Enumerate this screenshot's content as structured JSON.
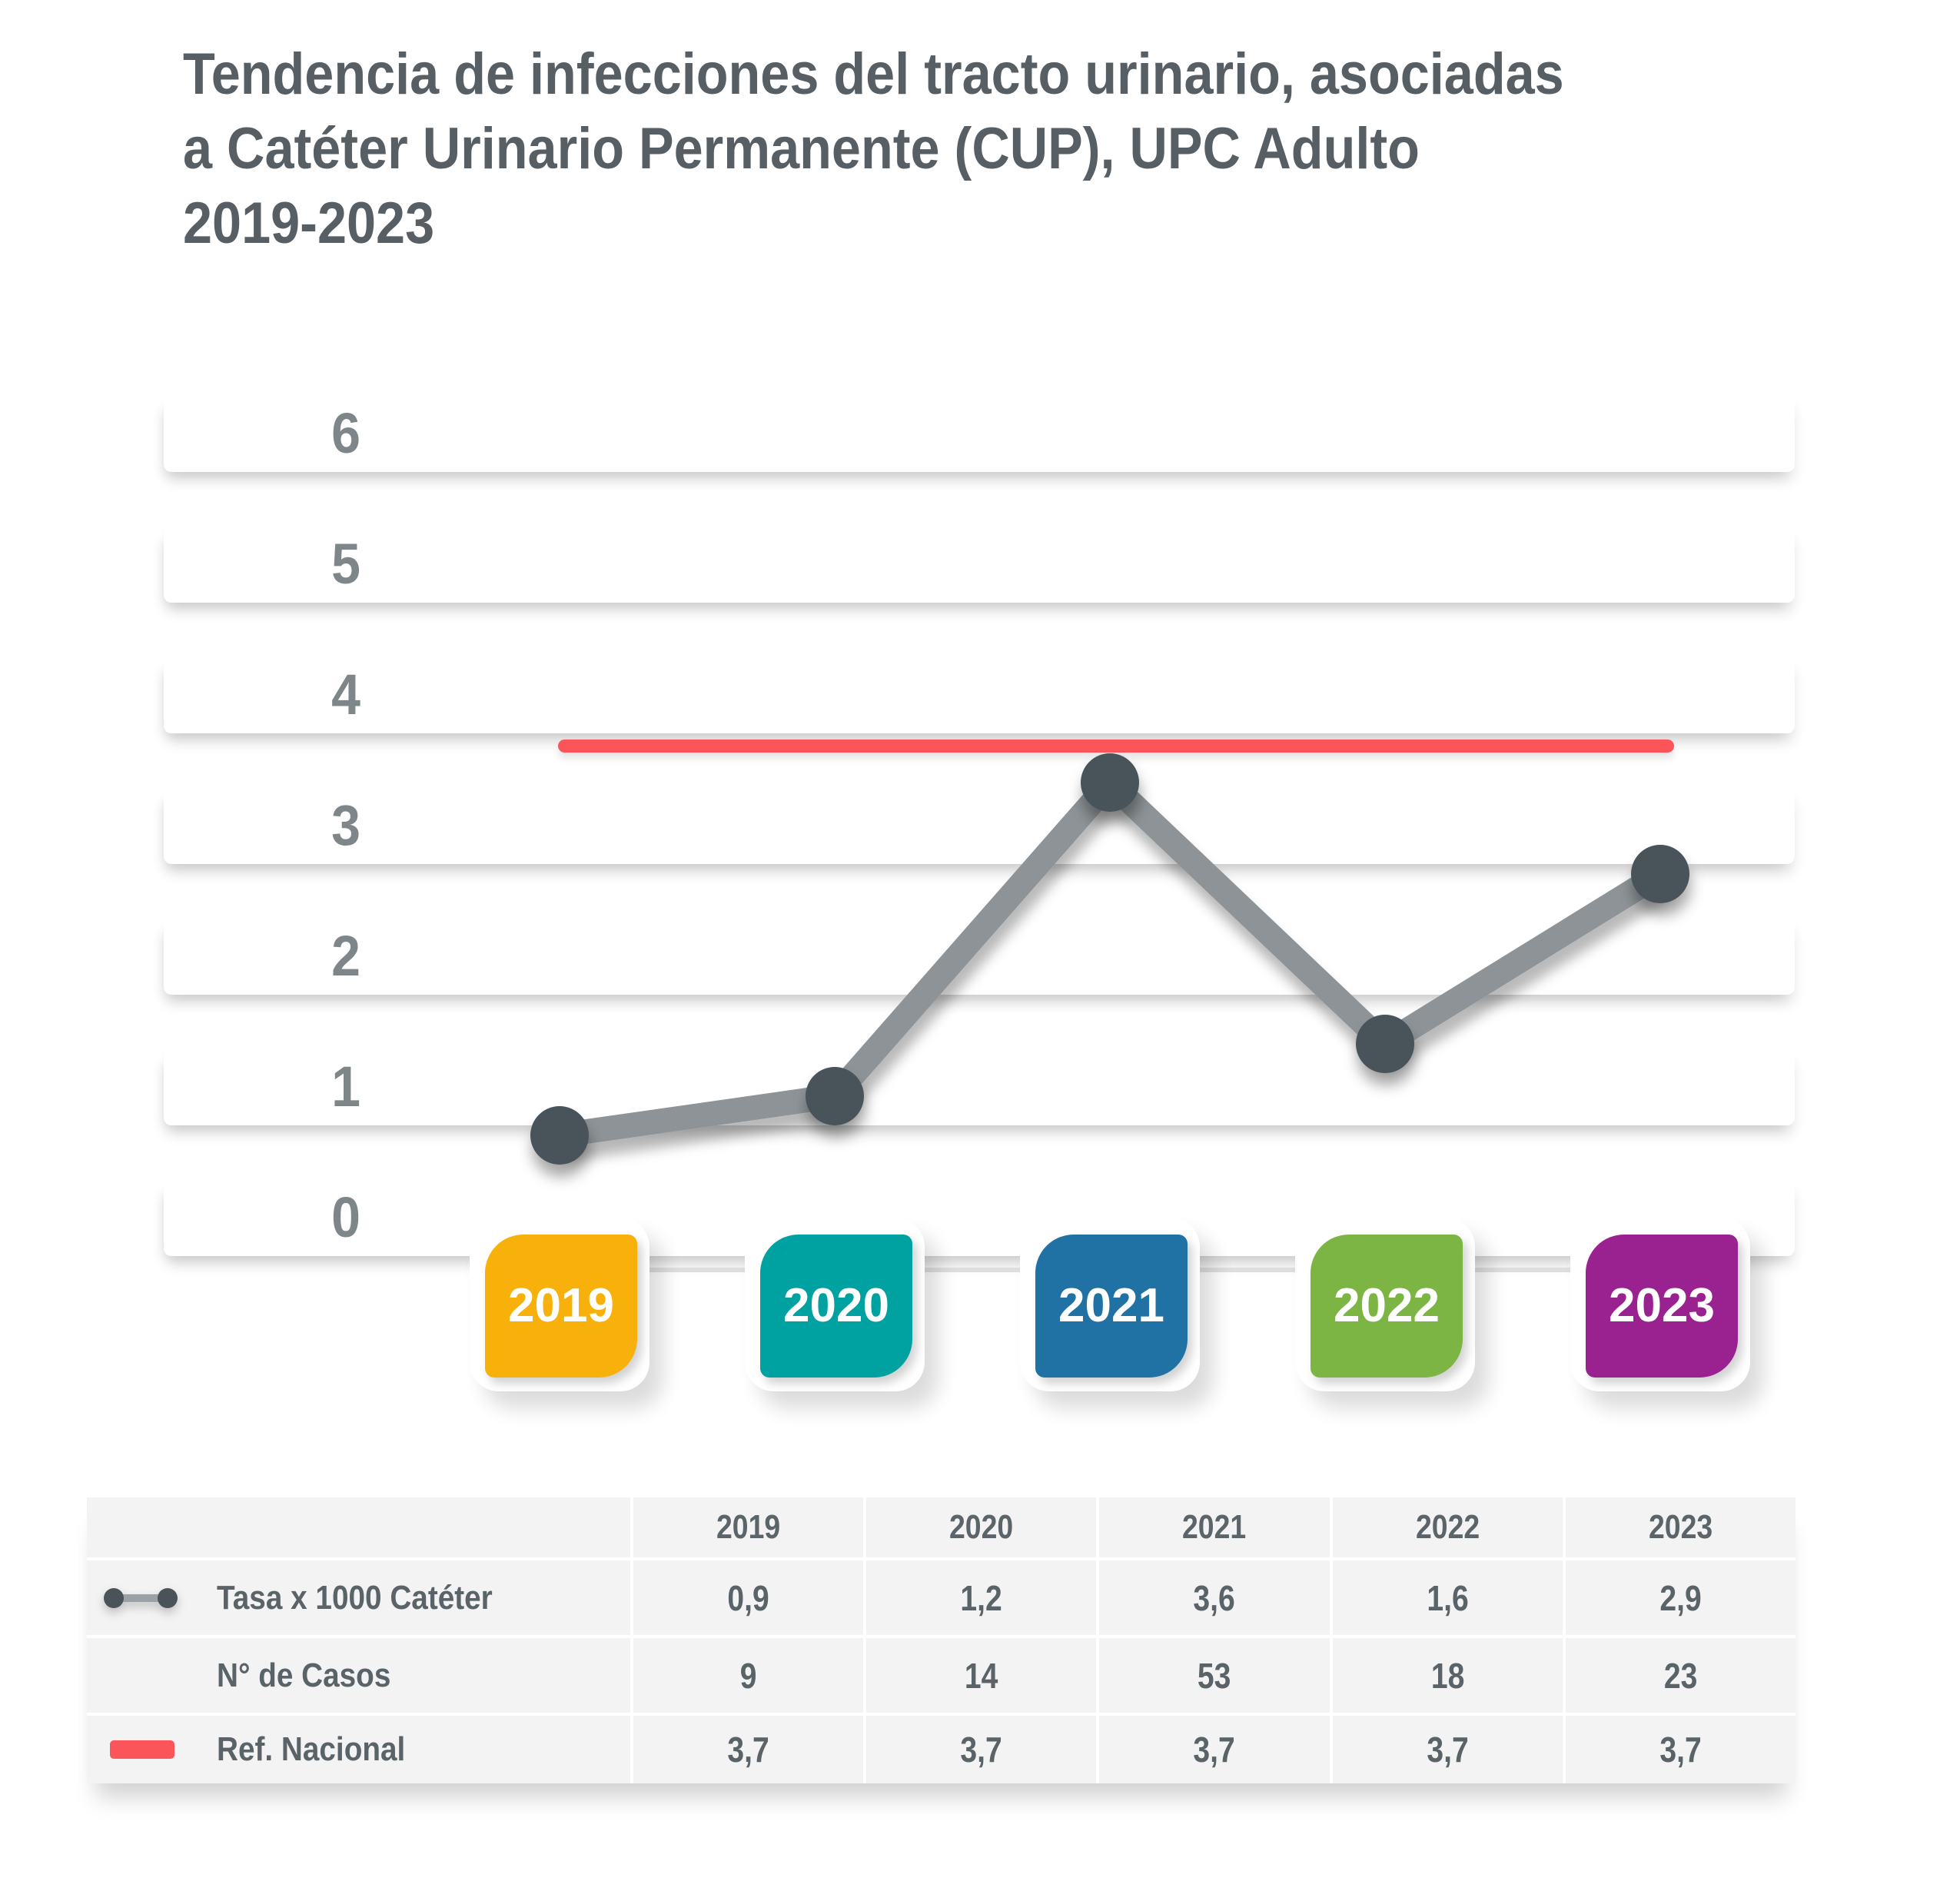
{
  "title": {
    "lines": [
      "Tendencia de infecciones del tracto urinario, asociadas",
      "a Catéter Urinario Permanente (CUP), UPC Adulto",
      "2019-2023"
    ]
  },
  "chart_data": {
    "type": "line",
    "title": "Tendencia de infecciones del tracto urinario, asociadas a Catéter Urinario Permanente (CUP), UPC Adulto 2019-2023",
    "categories": [
      "2019",
      "2020",
      "2021",
      "2022",
      "2023"
    ],
    "series": [
      {
        "name": "Tasa x 1000 Catéter",
        "values": [
          0.9,
          1.2,
          3.6,
          1.6,
          2.9
        ]
      },
      {
        "name": "N° de Casos",
        "values": [
          9,
          14,
          53,
          18,
          23
        ]
      },
      {
        "name": "Ref. Nacional",
        "values": [
          3.7,
          3.7,
          3.7,
          3.7,
          3.7
        ]
      }
    ],
    "xlabel": "",
    "ylabel": "",
    "ylim": [
      0,
      6
    ],
    "yticks": [
      6,
      5,
      4,
      3,
      2,
      1,
      0
    ],
    "grid": "horizontal-bands",
    "legend_position": "table-left",
    "colors": {
      "year_chips": [
        "#F7B10A",
        "#00A2A1",
        "#2071A4",
        "#7CB544",
        "#9A2190"
      ],
      "ref_line": "#FB5459",
      "trend_line": "#8D9396",
      "dot": "#48525A",
      "yaxis_label": "#7F868A",
      "title_text": "#575F64",
      "table_text": "#5A6367",
      "table_cell_bg": "#F3F3F4"
    }
  },
  "table": {
    "header": [
      "",
      "2019",
      "2020",
      "2021",
      "2022",
      "2023"
    ],
    "rows": [
      {
        "label": "Tasa x 1000 Catéter",
        "icon": "line-dots-icon",
        "values": [
          0.9,
          1.2,
          3.6,
          1.6,
          2.9
        ]
      },
      {
        "label": "N° de Casos",
        "icon": "none",
        "values": [
          9,
          14,
          53,
          18,
          23
        ]
      },
      {
        "label": "Ref. Nacional",
        "icon": "ref-swatch-icon",
        "values": [
          3.7,
          3.7,
          3.7,
          3.7,
          3.7
        ]
      }
    ]
  }
}
